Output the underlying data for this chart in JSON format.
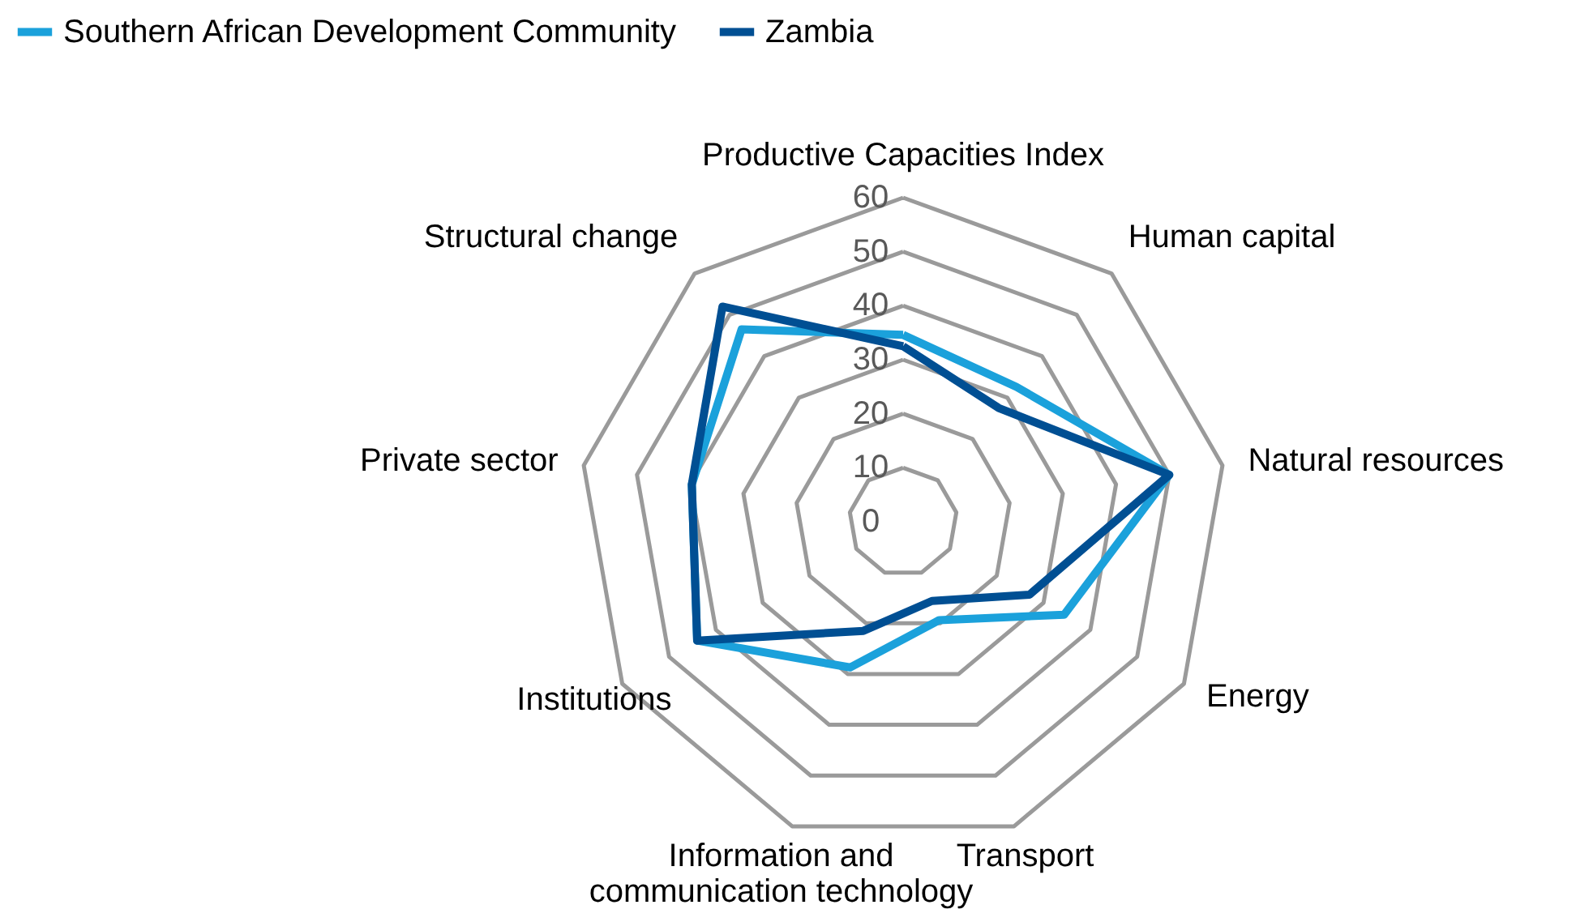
{
  "chart_data": {
    "type": "radar",
    "categories": [
      "Productive Capacities Index",
      "Human capital",
      "Natural resources",
      "Energy",
      "Transport",
      "Information and communication technology",
      "Institutions",
      "Private sector",
      "Structural change"
    ],
    "series": [
      {
        "name": "Southern African Development Community",
        "color": "#1ba1db",
        "values": [
          34.6,
          32.6,
          50,
          34.4,
          19.4,
          28.7,
          44,
          39.7,
          46.5
        ]
      },
      {
        "name": "Zambia",
        "color": "#004f93",
        "values": [
          32.5,
          27.5,
          50,
          27,
          15.6,
          21.5,
          44,
          39.7,
          52
        ]
      }
    ],
    "ylim": [
      0,
      60
    ],
    "yticks": [
      0,
      10,
      20,
      30,
      40,
      50,
      60
    ],
    "grid": true,
    "legend": "top left"
  }
}
